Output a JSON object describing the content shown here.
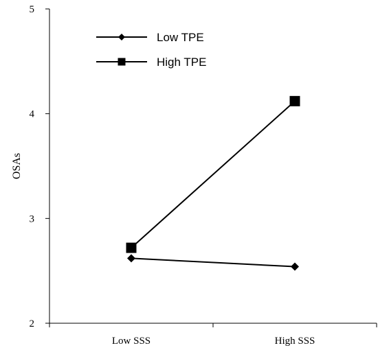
{
  "chart_data": {
    "type": "line",
    "categories": [
      "Low SSS",
      "High SSS"
    ],
    "series": [
      {
        "name": "Low TPE",
        "values": [
          2.62,
          2.54
        ],
        "marker": "diamond",
        "color": "#000000"
      },
      {
        "name": "High TPE",
        "values": [
          2.72,
          4.12
        ],
        "marker": "square",
        "color": "#000000"
      }
    ],
    "title": "",
    "xlabel": "",
    "ylabel": "OSAs",
    "ylim": [
      2,
      5
    ],
    "yticks": [
      2,
      3,
      4,
      5
    ],
    "grid": false,
    "legend_position": "top-left"
  }
}
